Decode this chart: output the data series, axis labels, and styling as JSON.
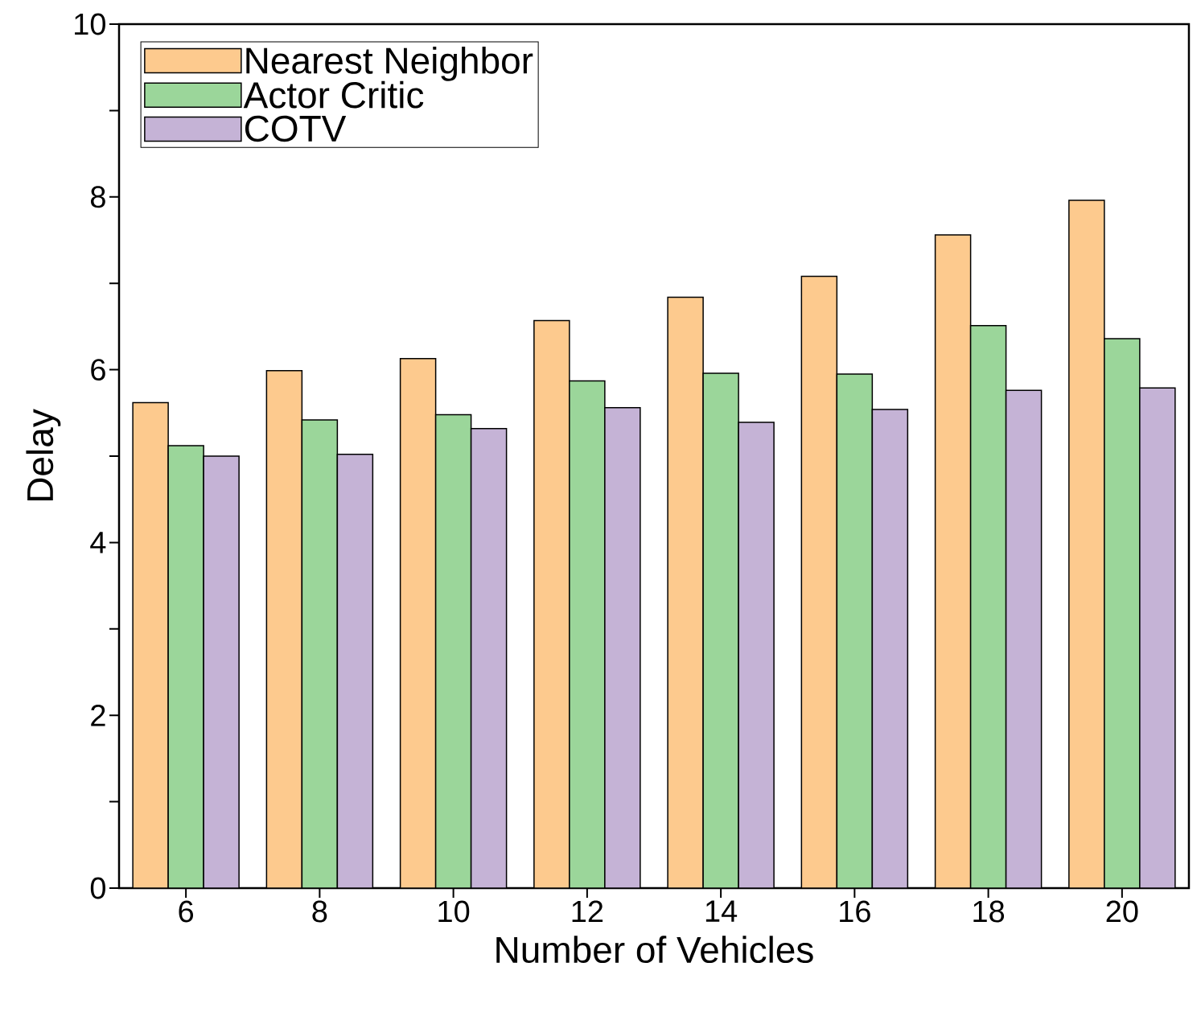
{
  "chart_data": {
    "type": "bar",
    "xlabel": "Number of Vehicles",
    "ylabel": "Delay",
    "categories": [
      "6",
      "8",
      "10",
      "12",
      "14",
      "16",
      "18",
      "20"
    ],
    "series": [
      {
        "name": "Nearest Neighbor",
        "color": "#fdca8e",
        "values": [
          5.62,
          5.99,
          6.13,
          6.57,
          6.84,
          7.08,
          7.56,
          7.96
        ]
      },
      {
        "name": "Actor Critic",
        "color": "#9bd69a",
        "values": [
          5.12,
          5.42,
          5.48,
          5.87,
          5.96,
          5.95,
          6.51,
          6.36
        ]
      },
      {
        "name": "COTV",
        "color": "#c5b3d6",
        "values": [
          5.0,
          5.02,
          5.32,
          5.56,
          5.39,
          5.54,
          5.76,
          5.79
        ]
      }
    ],
    "ylim": [
      0,
      10
    ],
    "yticks": [
      0,
      {
        "value": 1,
        "label": null
      },
      2,
      {
        "value": 3,
        "label": null
      },
      4,
      {
        "value": 5,
        "label": null
      },
      6,
      {
        "value": 7,
        "label": null
      },
      8,
      {
        "value": 9,
        "label": null
      },
      10
    ],
    "legend": "top left"
  }
}
